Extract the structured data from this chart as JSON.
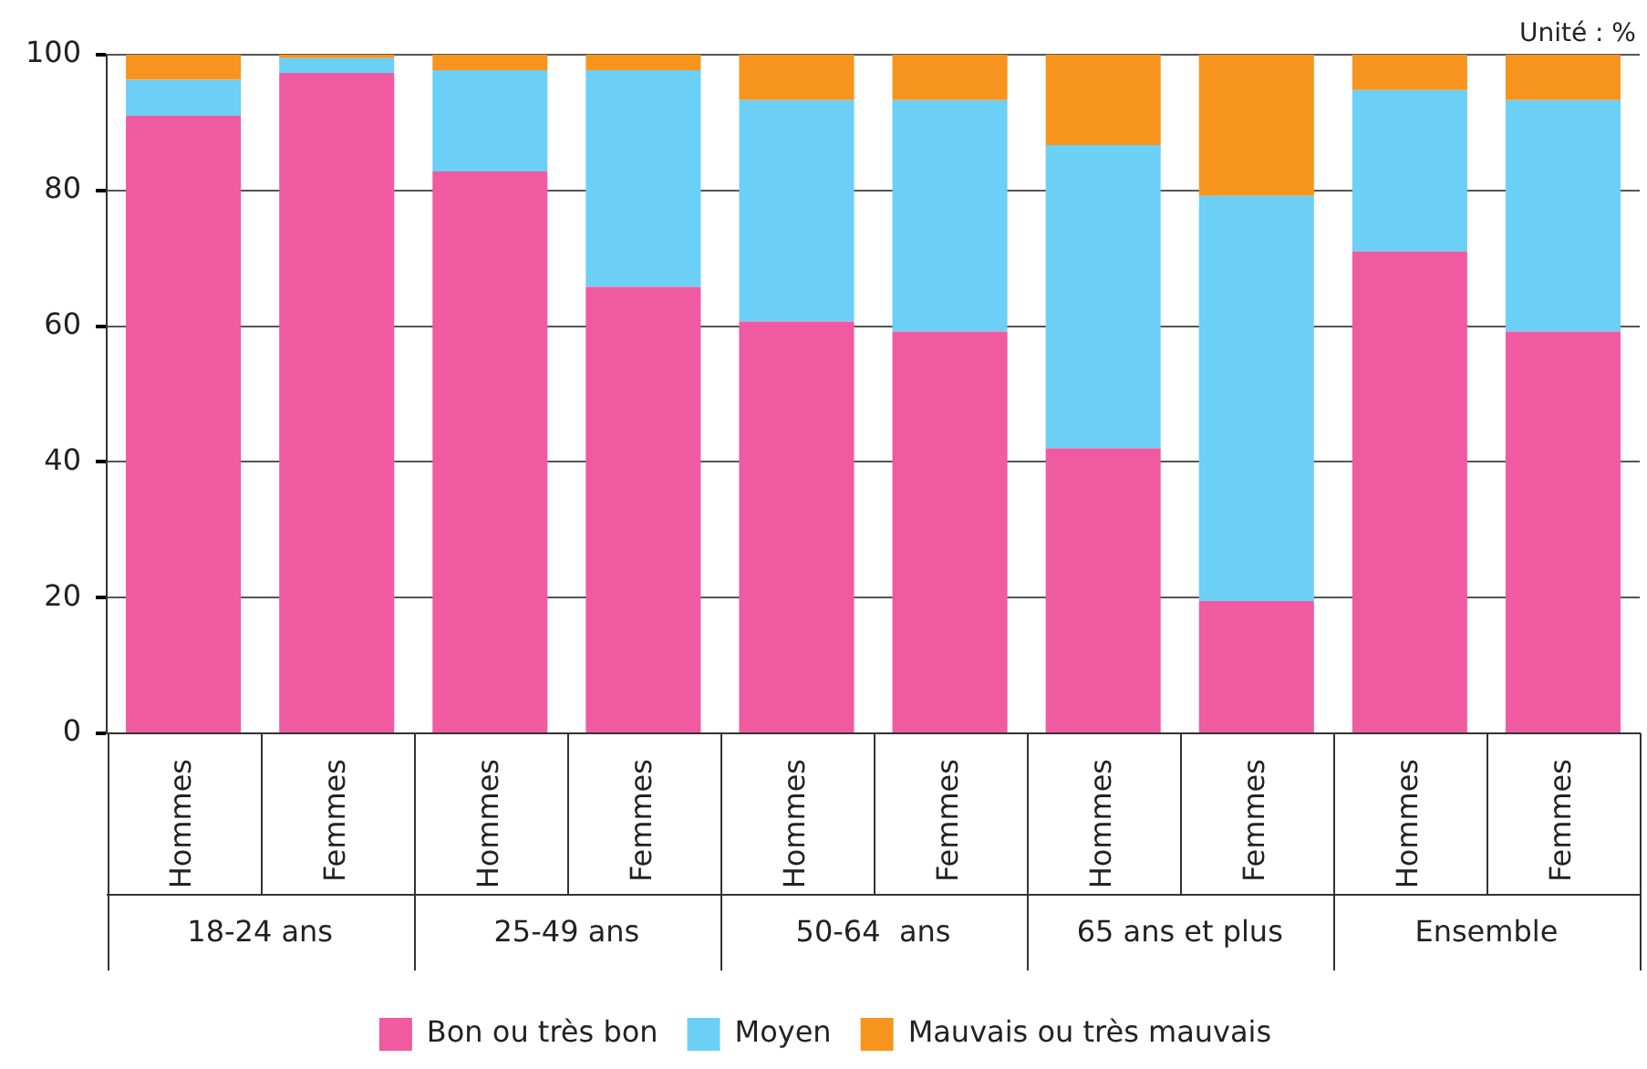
{
  "chart_data": {
    "type": "bar",
    "stacked": true,
    "ylabel": "Unité : %",
    "categories": [
      "Hommes",
      "Femmes",
      "Hommes",
      "Femmes",
      "Hommes",
      "Femmes",
      "Hommes",
      "Femmes",
      "Hommes",
      "Femmes"
    ],
    "annotations": [
      "18-24 ans",
      "25-49 ans",
      "50-64  ans",
      "65 ans et plus",
      "Ensemble"
    ],
    "series": [
      {
        "name": "Bon ou très bon",
        "color": "#ef5aa0",
        "values": [
          91,
          97.3,
          82.8,
          65.8,
          60.7,
          59.2,
          42,
          19.5,
          71,
          59.2
        ]
      },
      {
        "name": "Moyen",
        "color": "#6ccff5",
        "values": [
          5.3,
          2.2,
          14.9,
          31.9,
          32.6,
          34.1,
          44.7,
          59.7,
          23.8,
          34.1
        ]
      },
      {
        "name": "Mauvais ou très mauvais",
        "color": "#f7941e",
        "values": [
          3.7,
          0.5,
          2.3,
          2.3,
          6.7,
          6.7,
          13.3,
          20.8,
          5.2,
          6.7
        ]
      }
    ],
    "ylim": [
      0,
      100
    ],
    "yticks": [
      0,
      20,
      40,
      60,
      80,
      100
    ],
    "grid": "y",
    "legend": "bottom"
  }
}
